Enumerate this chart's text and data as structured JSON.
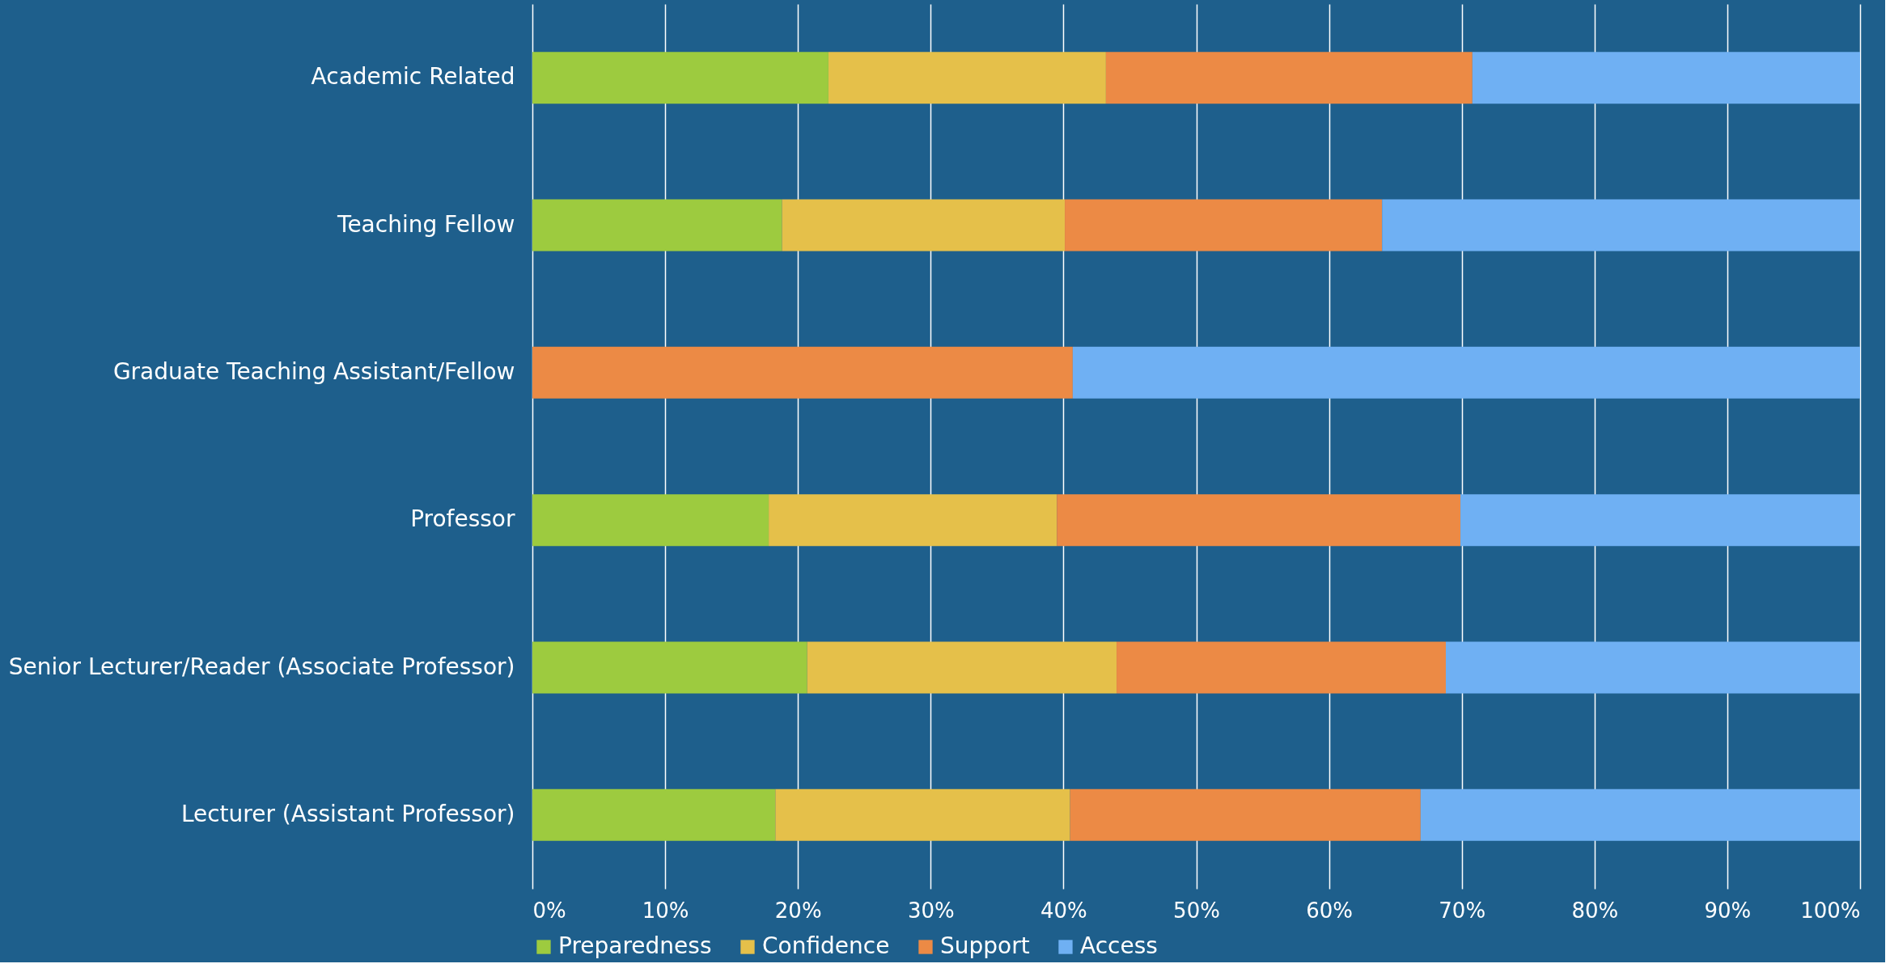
{
  "chart_data": {
    "type": "bar",
    "orientation": "horizontal",
    "stacked": true,
    "categories": [
      "Academic Related",
      "Teaching Fellow",
      "Graduate Teaching Assistant/Fellow",
      "Professor",
      "Senior Lecturer/Reader (Associate Professor)",
      "Lecturer (Assistant Professor)"
    ],
    "series": [
      {
        "name": "Preparedness",
        "color": "#9dcb3f",
        "values": [
          22.3,
          18.8,
          0,
          17.8,
          20.7,
          18.3
        ]
      },
      {
        "name": "Confidence",
        "color": "#e5c04a",
        "values": [
          20.9,
          21.3,
          0,
          21.7,
          23.3,
          22.2
        ]
      },
      {
        "name": "Support",
        "color": "#ec8a45",
        "values": [
          27.6,
          23.9,
          40.7,
          30.4,
          24.8,
          26.4
        ]
      },
      {
        "name": "Access",
        "color": "#6fb0f3",
        "values": [
          29.2,
          36.0,
          59.3,
          30.1,
          31.2,
          33.1
        ]
      }
    ],
    "xlim": [
      0,
      100
    ],
    "xticks": [
      {
        "value": 0,
        "label": "0%"
      },
      {
        "value": 10,
        "label": "10%"
      },
      {
        "value": 20,
        "label": "20%"
      },
      {
        "value": 30,
        "label": "30%"
      },
      {
        "value": 40,
        "label": "40%"
      },
      {
        "value": 50,
        "label": "50%"
      },
      {
        "value": 60,
        "label": "60%"
      },
      {
        "value": 70,
        "label": "70%"
      },
      {
        "value": 80,
        "label": "80%"
      },
      {
        "value": 90,
        "label": "90%"
      },
      {
        "value": 100,
        "label": "100%"
      }
    ],
    "grid": "x",
    "legend": "bottom"
  }
}
